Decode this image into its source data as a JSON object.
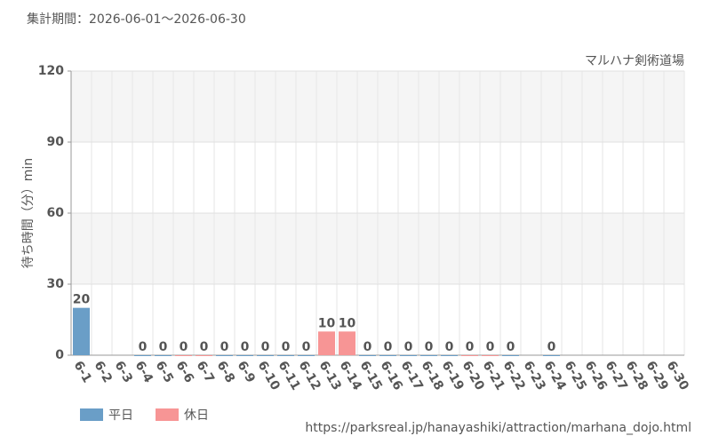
{
  "chart_data": {
    "type": "bar",
    "subtitle": "集計期間：2026-06-01～2026-06-30",
    "annotation": "マルハナ剣術道場",
    "y_label": "待ち時間（分）min",
    "source": "https://parksreal.jp/hanayashiki/attraction/marhana_dojo.html",
    "categories": [
      "6-1",
      "6-2",
      "6-3",
      "6-4",
      "6-5",
      "6-6",
      "6-7",
      "6-8",
      "6-9",
      "6-10",
      "6-11",
      "6-12",
      "6-13",
      "6-14",
      "6-15",
      "6-16",
      "6-17",
      "6-18",
      "6-19",
      "6-20",
      "6-21",
      "6-22",
      "6-23",
      "6-24",
      "6-25",
      "6-26",
      "6-27",
      "6-28",
      "6-29",
      "6-30"
    ],
    "category_colors": [
      "#555",
      "#555",
      "#555",
      "#555",
      "#555",
      "#f08080",
      "#f08080",
      "#555",
      "#555",
      "#555",
      "#555",
      "#555",
      "#f08080",
      "#f08080",
      "#555",
      "#555",
      "#555",
      "#555",
      "#555",
      "#f08080",
      "#f08080",
      "#555",
      "#555",
      "#555",
      "#555",
      "#555",
      "#f08080",
      "#f08080",
      "#555",
      "#555"
    ],
    "series": [
      {
        "name": "平日",
        "color": "#6a9ec7",
        "values": [
          20,
          null,
          null,
          0,
          0,
          null,
          null,
          0,
          0,
          0,
          0,
          0,
          null,
          null,
          0,
          0,
          0,
          0,
          0,
          null,
          null,
          0,
          null,
          0,
          null,
          null,
          null,
          null,
          null,
          null
        ]
      },
      {
        "name": "休日",
        "color": "#f79595",
        "values": [
          null,
          null,
          null,
          null,
          null,
          0,
          0,
          null,
          null,
          null,
          null,
          null,
          10,
          10,
          null,
          null,
          null,
          null,
          null,
          0,
          0,
          null,
          null,
          null,
          null,
          null,
          null,
          null,
          null,
          null
        ]
      }
    ],
    "ylim": [
      0,
      120
    ],
    "yticks": [
      0,
      30,
      60,
      90,
      120
    ],
    "grid": true,
    "legend": "bottom-left"
  }
}
